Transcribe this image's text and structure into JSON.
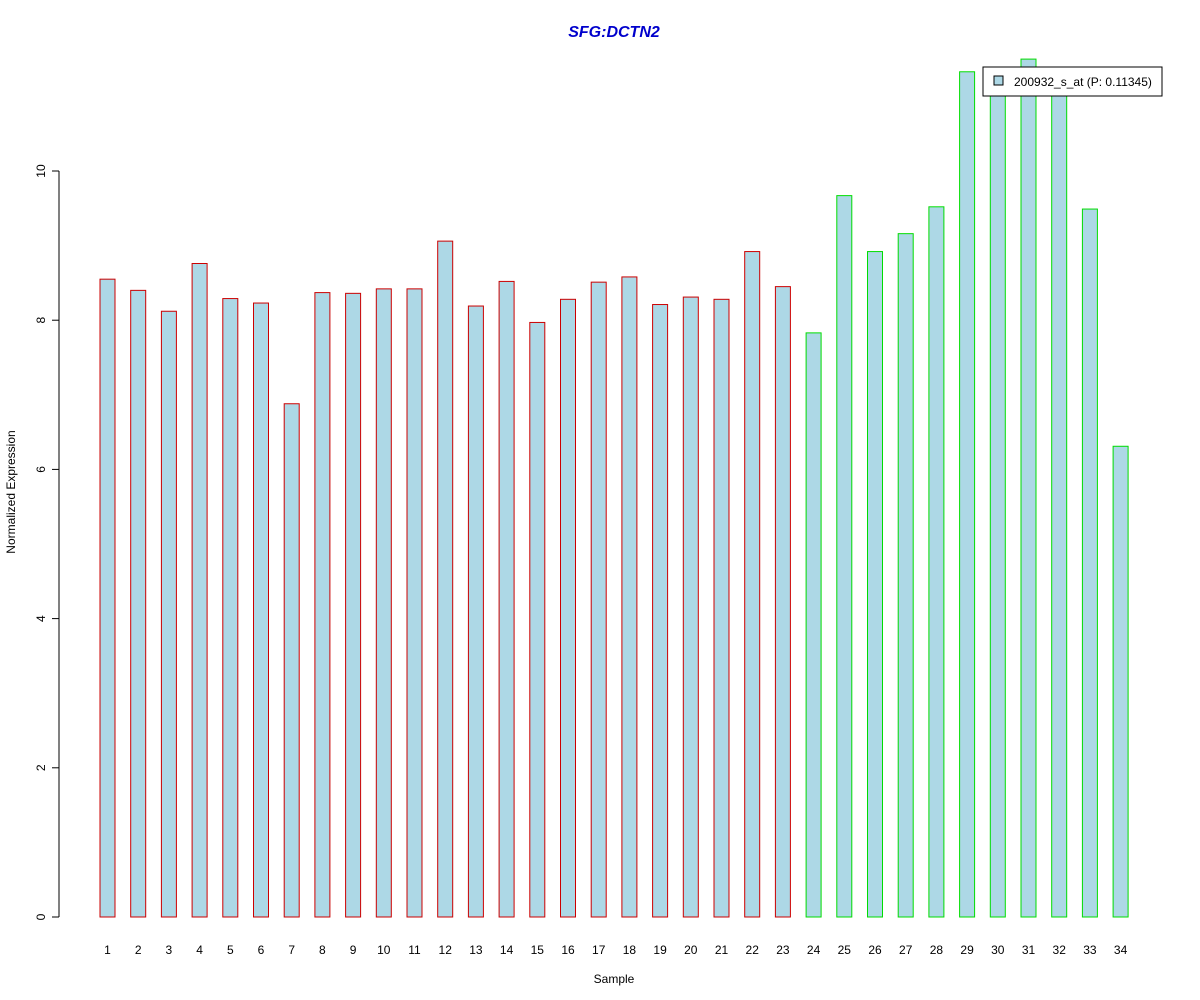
{
  "chart_data": {
    "type": "bar",
    "title": "SFG:DCTN2",
    "xlabel": "Sample",
    "ylabel": "Normalized Expression",
    "ylim": [
      0,
      11.5
    ],
    "yticks": [
      0,
      2,
      4,
      6,
      8,
      10
    ],
    "categories": [
      "1",
      "2",
      "3",
      "4",
      "5",
      "6",
      "7",
      "8",
      "9",
      "10",
      "11",
      "12",
      "13",
      "14",
      "15",
      "16",
      "17",
      "18",
      "19",
      "20",
      "21",
      "22",
      "23",
      "24",
      "25",
      "26",
      "27",
      "28",
      "29",
      "30",
      "31",
      "32",
      "33",
      "34"
    ],
    "series": [
      {
        "name": "200932_s_at (P: 0.11345)",
        "fill_color": "#add8e6",
        "values": [
          8.55,
          8.4,
          8.12,
          8.76,
          8.29,
          8.23,
          6.88,
          8.37,
          8.36,
          8.42,
          8.42,
          9.06,
          8.19,
          8.52,
          7.97,
          8.28,
          8.51,
          8.58,
          8.21,
          8.31,
          8.28,
          8.92,
          8.45,
          7.83,
          9.67,
          8.92,
          9.16,
          9.52,
          11.33,
          11.2,
          11.5,
          11.2,
          9.49,
          6.31
        ]
      }
    ],
    "group_border_colors": [
      "#cc0000",
      "#cc0000",
      "#cc0000",
      "#cc0000",
      "#cc0000",
      "#cc0000",
      "#cc0000",
      "#cc0000",
      "#cc0000",
      "#cc0000",
      "#cc0000",
      "#cc0000",
      "#cc0000",
      "#cc0000",
      "#cc0000",
      "#cc0000",
      "#cc0000",
      "#cc0000",
      "#cc0000",
      "#cc0000",
      "#cc0000",
      "#cc0000",
      "#cc0000",
      "#00dd00",
      "#00dd00",
      "#00dd00",
      "#00dd00",
      "#00dd00",
      "#00dd00",
      "#00dd00",
      "#00dd00",
      "#00dd00",
      "#00dd00",
      "#00dd00"
    ],
    "title_color": "#0000cc",
    "legend_position": "top-right",
    "grid": false
  }
}
